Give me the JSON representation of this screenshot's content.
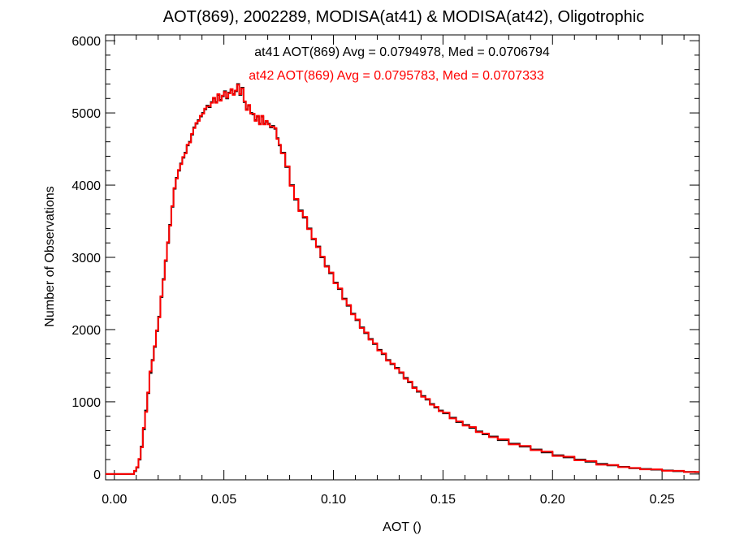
{
  "chart_data": {
    "type": "line",
    "title": "AOT(869), 2002289, MODISA(at41) & MODISA(at42), Oligotrophic",
    "xlabel": "AOT ()",
    "ylabel": "Number of Observations",
    "xlim": [
      -0.004,
      0.267
    ],
    "ylim": [
      -80,
      6080
    ],
    "xticks": [
      0.0,
      0.05,
      0.1,
      0.15,
      0.2,
      0.25
    ],
    "xtick_labels": [
      "0.00",
      "0.05",
      "0.10",
      "0.15",
      "0.20",
      "0.25"
    ],
    "yticks": [
      0,
      1000,
      2000,
      3000,
      4000,
      5000,
      6000
    ],
    "ytick_labels": [
      "0",
      "1000",
      "2000",
      "3000",
      "4000",
      "5000",
      "6000"
    ],
    "grid": false,
    "step": true,
    "annotations": [
      {
        "text": "at41 AOT(869) Avg = 0.0794978, Med = 0.0706794",
        "color": "#000000"
      },
      {
        "text": "at42 AOT(869) Avg = 0.0795783, Med = 0.0707333",
        "color": "#ff0000"
      }
    ],
    "series": [
      {
        "color": "#000000",
        "x": [
          -0.004,
          0.0,
          0.005,
          0.008,
          0.009,
          0.01,
          0.011,
          0.012,
          0.013,
          0.014,
          0.015,
          0.016,
          0.017,
          0.018,
          0.019,
          0.02,
          0.021,
          0.022,
          0.023,
          0.024,
          0.025,
          0.026,
          0.027,
          0.028,
          0.029,
          0.03,
          0.031,
          0.032,
          0.033,
          0.034,
          0.035,
          0.036,
          0.037,
          0.038,
          0.039,
          0.04,
          0.041,
          0.042,
          0.043,
          0.044,
          0.045,
          0.046,
          0.047,
          0.048,
          0.049,
          0.05,
          0.051,
          0.052,
          0.053,
          0.054,
          0.055,
          0.056,
          0.057,
          0.058,
          0.059,
          0.06,
          0.061,
          0.062,
          0.063,
          0.064,
          0.065,
          0.066,
          0.067,
          0.068,
          0.069,
          0.07,
          0.071,
          0.072,
          0.073,
          0.074,
          0.075,
          0.076,
          0.078,
          0.08,
          0.082,
          0.084,
          0.086,
          0.088,
          0.09,
          0.092,
          0.094,
          0.096,
          0.098,
          0.1,
          0.102,
          0.104,
          0.106,
          0.108,
          0.11,
          0.112,
          0.114,
          0.116,
          0.118,
          0.12,
          0.122,
          0.124,
          0.126,
          0.128,
          0.13,
          0.132,
          0.134,
          0.136,
          0.138,
          0.14,
          0.142,
          0.144,
          0.146,
          0.148,
          0.15,
          0.153,
          0.156,
          0.159,
          0.162,
          0.165,
          0.168,
          0.171,
          0.175,
          0.18,
          0.185,
          0.19,
          0.195,
          0.2,
          0.205,
          0.21,
          0.215,
          0.22,
          0.225,
          0.23,
          0.235,
          0.24,
          0.245,
          0.25,
          0.255,
          0.26,
          0.265
        ],
        "y": [
          0,
          0,
          0,
          0,
          40,
          90,
          200,
          380,
          620,
          880,
          1120,
          1400,
          1580,
          1760,
          1980,
          2180,
          2450,
          2700,
          2950,
          3200,
          3450,
          3700,
          3950,
          4100,
          4200,
          4300,
          4380,
          4450,
          4550,
          4600,
          4700,
          4800,
          4850,
          4900,
          4950,
          5000,
          5050,
          5100,
          5080,
          5150,
          5200,
          5150,
          5250,
          5180,
          5230,
          5300,
          5200,
          5280,
          5320,
          5260,
          5300,
          5400,
          5250,
          5350,
          5150,
          5050,
          5100,
          5000,
          4980,
          4900,
          4950,
          4850,
          4950,
          4850,
          4880,
          4850,
          4800,
          4820,
          4780,
          4650,
          4550,
          4450,
          4250,
          4000,
          3800,
          3650,
          3550,
          3400,
          3250,
          3150,
          3000,
          2880,
          2780,
          2650,
          2560,
          2430,
          2330,
          2220,
          2130,
          2030,
          1950,
          1870,
          1800,
          1720,
          1660,
          1580,
          1520,
          1470,
          1400,
          1330,
          1270,
          1200,
          1140,
          1080,
          1030,
          970,
          920,
          880,
          840,
          780,
          720,
          680,
          640,
          590,
          550,
          520,
          470,
          420,
          380,
          340,
          300,
          260,
          230,
          200,
          170,
          140,
          120,
          100,
          80,
          70,
          60,
          50,
          40,
          30,
          25
        ]
      },
      {
        "color": "#ff0000",
        "x": [
          -0.004,
          0.0,
          0.005,
          0.008,
          0.009,
          0.01,
          0.011,
          0.012,
          0.013,
          0.014,
          0.015,
          0.016,
          0.017,
          0.018,
          0.019,
          0.02,
          0.021,
          0.022,
          0.023,
          0.024,
          0.025,
          0.026,
          0.027,
          0.028,
          0.029,
          0.03,
          0.031,
          0.032,
          0.033,
          0.034,
          0.035,
          0.036,
          0.037,
          0.038,
          0.039,
          0.04,
          0.041,
          0.042,
          0.043,
          0.044,
          0.045,
          0.046,
          0.047,
          0.048,
          0.049,
          0.05,
          0.051,
          0.052,
          0.053,
          0.054,
          0.055,
          0.056,
          0.057,
          0.058,
          0.059,
          0.06,
          0.061,
          0.062,
          0.063,
          0.064,
          0.065,
          0.066,
          0.067,
          0.068,
          0.069,
          0.07,
          0.071,
          0.072,
          0.073,
          0.074,
          0.075,
          0.076,
          0.078,
          0.08,
          0.082,
          0.084,
          0.086,
          0.088,
          0.09,
          0.092,
          0.094,
          0.096,
          0.098,
          0.1,
          0.102,
          0.104,
          0.106,
          0.108,
          0.11,
          0.112,
          0.114,
          0.116,
          0.118,
          0.12,
          0.122,
          0.124,
          0.126,
          0.128,
          0.13,
          0.132,
          0.134,
          0.136,
          0.138,
          0.14,
          0.142,
          0.144,
          0.146,
          0.148,
          0.15,
          0.153,
          0.156,
          0.159,
          0.162,
          0.165,
          0.168,
          0.171,
          0.175,
          0.18,
          0.185,
          0.19,
          0.195,
          0.2,
          0.205,
          0.21,
          0.215,
          0.22,
          0.225,
          0.23,
          0.235,
          0.24,
          0.245,
          0.25,
          0.255,
          0.26,
          0.265
        ],
        "y": [
          0,
          0,
          0,
          0,
          45,
          95,
          210,
          370,
          640,
          860,
          1130,
          1420,
          1570,
          1770,
          1990,
          2170,
          2460,
          2690,
          2960,
          3210,
          3440,
          3710,
          3960,
          4090,
          4210,
          4290,
          4390,
          4440,
          4560,
          4590,
          4710,
          4790,
          4860,
          4890,
          4960,
          4990,
          5060,
          5090,
          5090,
          5140,
          5210,
          5140,
          5260,
          5170,
          5240,
          5290,
          5210,
          5270,
          5330,
          5250,
          5310,
          5390,
          5260,
          5340,
          5160,
          5040,
          5110,
          4990,
          4990,
          4890,
          4960,
          4840,
          4960,
          4840,
          4890,
          4840,
          4810,
          4810,
          4790,
          4640,
          4560,
          4440,
          4260,
          3990,
          3810,
          3640,
          3560,
          3390,
          3260,
          3140,
          3010,
          2870,
          2790,
          2640,
          2570,
          2420,
          2340,
          2210,
          2140,
          2020,
          1960,
          1860,
          1810,
          1710,
          1670,
          1570,
          1530,
          1460,
          1410,
          1320,
          1280,
          1190,
          1150,
          1070,
          1040,
          960,
          930,
          870,
          850,
          770,
          730,
          670,
          650,
          580,
          560,
          510,
          480,
          410,
          390,
          330,
          310,
          250,
          240,
          190,
          180,
          130,
          125,
          95,
          85,
          65,
          65,
          45,
          45,
          28,
          30
        ]
      }
    ]
  }
}
